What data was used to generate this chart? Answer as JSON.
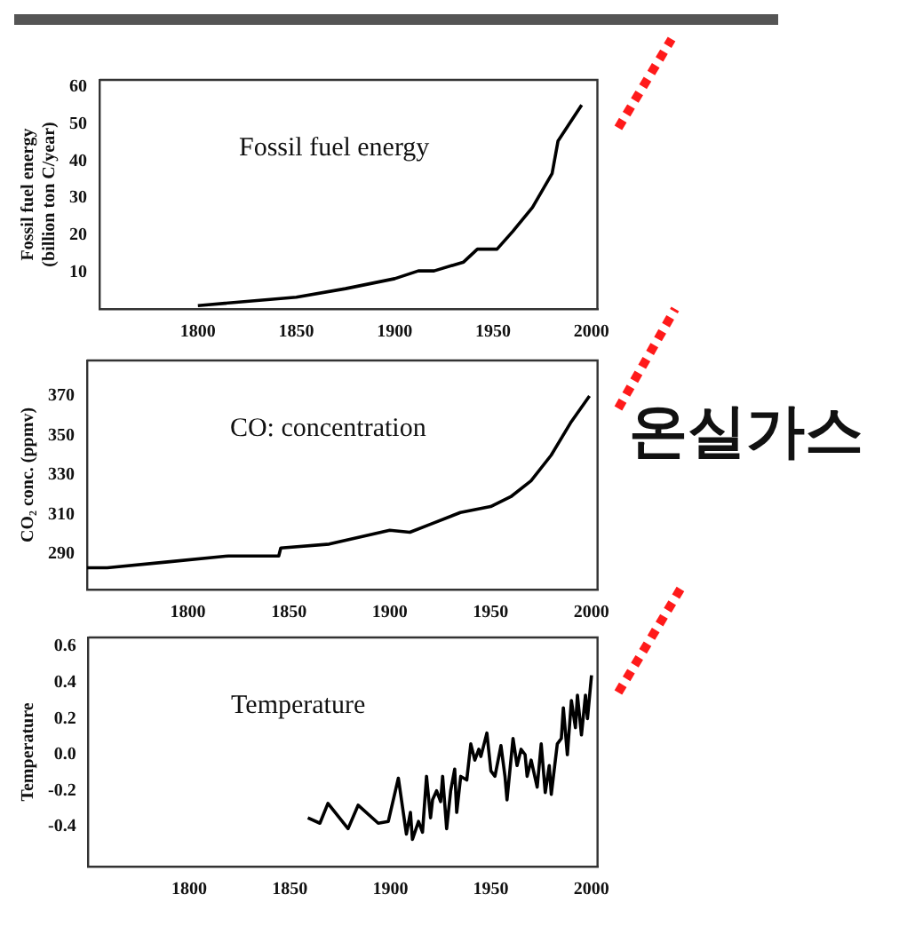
{
  "chart_data": [
    {
      "type": "line",
      "title": "Fossil fuel energy",
      "ylabel": "Fossil fuel energy (billion ton C/year)",
      "color": "#000000",
      "x": [
        1800,
        1850,
        1875,
        1900,
        1912,
        1920,
        1935,
        1942,
        1952,
        1960,
        1970,
        1980,
        1983,
        1995
      ],
      "values": [
        0.9,
        3.2,
        5.5,
        8.2,
        10.3,
        10.3,
        12.7,
        16.2,
        16.2,
        21,
        27.5,
        36.7,
        45.5,
        55.2
      ],
      "xlim": [
        1750,
        2003
      ],
      "xticks": [
        1800,
        1850,
        1900,
        1950,
        2000
      ],
      "ylim": [
        0,
        62
      ],
      "yticks": [
        10,
        20,
        30,
        40,
        50,
        60
      ]
    },
    {
      "type": "line",
      "title": "CO: concentration",
      "ylabel": "CO₂ conc. (ppmv)",
      "color": "#000000",
      "annotations": [
        "온실가스"
      ],
      "x": [
        1750,
        1760,
        1790,
        1820,
        1845,
        1846,
        1870,
        1900,
        1910,
        1920,
        1935,
        1950,
        1960,
        1970,
        1980,
        1990,
        1999
      ],
      "values": [
        283,
        283,
        286,
        289,
        289,
        293,
        295,
        302,
        301,
        305,
        311,
        314,
        319,
        327,
        340,
        357,
        370
      ],
      "xlim": [
        1750,
        2003
      ],
      "xticks": [
        1800,
        1850,
        1900,
        1950,
        2000
      ],
      "ylim": [
        272,
        388
      ],
      "yticks": [
        290,
        310,
        330,
        350,
        370
      ]
    },
    {
      "type": "line",
      "title": "Temperature",
      "ylabel": "Temperature",
      "color": "#000000",
      "x": [
        1859,
        1865,
        1869,
        1879,
        1884,
        1894,
        1899,
        1904,
        1908,
        1910,
        1911,
        1914,
        1916,
        1918,
        1920,
        1921,
        1923,
        1925,
        1926,
        1928,
        1930,
        1932,
        1933,
        1935,
        1938,
        1940,
        1942,
        1944,
        1945,
        1948,
        1950,
        1952,
        1955,
        1957,
        1958,
        1961,
        1963,
        1965,
        1967,
        1968,
        1970,
        1973,
        1975,
        1977,
        1979,
        1980,
        1983,
        1985,
        1986,
        1988,
        1990,
        1992,
        1993,
        1995,
        1997,
        1998,
        2000
      ],
      "values": [
        -0.35,
        -0.38,
        -0.27,
        -0.41,
        -0.28,
        -0.38,
        -0.37,
        -0.13,
        -0.44,
        -0.32,
        -0.47,
        -0.37,
        -0.43,
        -0.12,
        -0.35,
        -0.25,
        -0.2,
        -0.26,
        -0.12,
        -0.41,
        -0.2,
        -0.08,
        -0.32,
        -0.12,
        -0.14,
        0.06,
        -0.03,
        0.03,
        -0.01,
        0.12,
        -0.09,
        -0.12,
        0.05,
        -0.12,
        -0.25,
        0.09,
        -0.06,
        0.03,
        0,
        -0.12,
        -0.03,
        -0.18,
        0.06,
        -0.21,
        -0.06,
        -0.22,
        0.06,
        0.09,
        0.26,
        0,
        0.3,
        0.15,
        0.33,
        0.11,
        0.33,
        0.2,
        0.44
      ],
      "xlim": [
        1750,
        2003
      ],
      "xticks": [
        1800,
        1850,
        1900,
        1950,
        2000
      ],
      "ylim": [
        -0.62,
        0.65
      ],
      "yticks": [
        {
          "value": -0.4,
          "label": "-0.4"
        },
        {
          "value": -0.2,
          "label": "-0.2"
        },
        {
          "value": 0,
          "label": "0.0"
        },
        {
          "value": 0.2,
          "label": "0.2"
        },
        {
          "value": 0.4,
          "label": "0.4"
        },
        {
          "value": 0.6,
          "label": "0.6"
        }
      ]
    }
  ]
}
